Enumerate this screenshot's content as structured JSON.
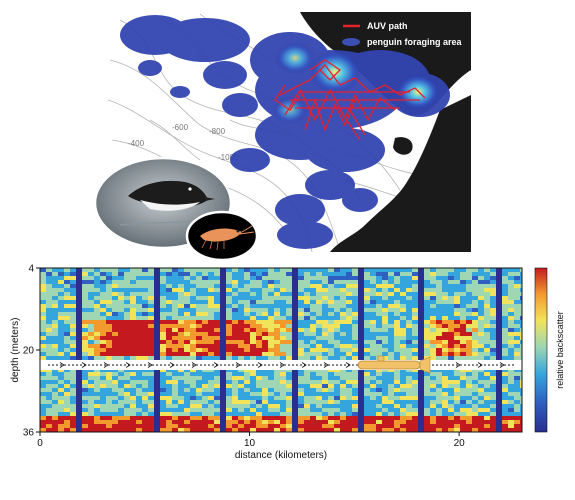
{
  "map": {
    "legend": {
      "auv_path_label": "AUV path",
      "foraging_label": "penguin foraging area",
      "auv_path_color": "#e8202a",
      "foraging_color": "#3b4fb5"
    },
    "contour_labels": [
      "-600",
      "-800",
      "-400",
      "-1000"
    ],
    "land_color": "#1a1a1a",
    "photos": [
      "penguin-photo",
      "krill-photo"
    ]
  },
  "chart_data": {
    "type": "heatmap",
    "title": "",
    "xlabel": "distance (kilometers)",
    "ylabel": "depth (meters)",
    "colorbar_label": "relative backscatter",
    "x_ticks": [
      "0",
      "10",
      "20"
    ],
    "y_ticks": [
      "4",
      "20",
      "36"
    ],
    "xlim": [
      0,
      23
    ],
    "ylim": [
      36,
      4
    ],
    "auv_depth_m": 20,
    "colormap": [
      "#2a2e8f",
      "#2f5fc0",
      "#35a5dd",
      "#9fd6b3",
      "#f2e45a",
      "#f29a2e",
      "#c41a1f"
    ]
  }
}
